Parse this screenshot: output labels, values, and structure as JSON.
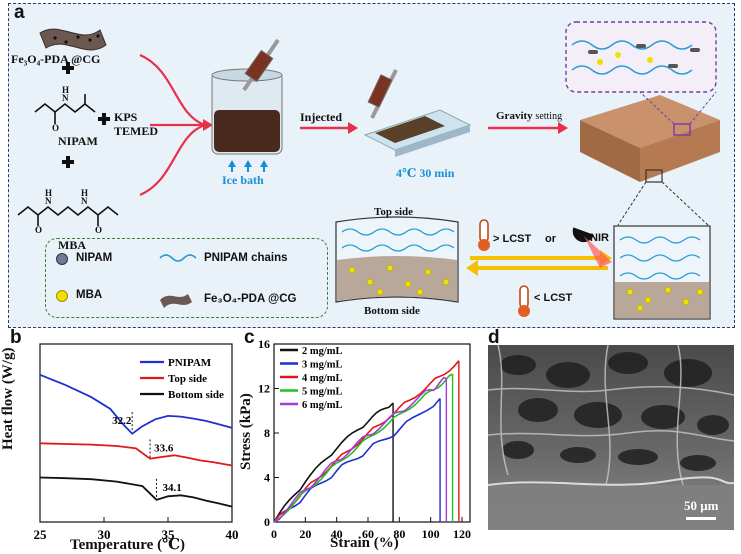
{
  "panel_a": {
    "label": "a",
    "reagent1": "Fe₃O₄-PDA @CG",
    "reagent2": "NIPAM",
    "reagent3": "MBA",
    "initiator1": "KPS",
    "initiator2": "TEMED",
    "ice_bath": "Ice bath",
    "injected": "Injected",
    "condition": "4℃  30 min",
    "gravity": "Gravity",
    "setting": "setting",
    "top_side": "Top side",
    "bottom_side": "Bottom side",
    "gt_lcst": "> LCST",
    "or": "or",
    "nir": "NIR",
    "lt_lcst": "< LCST",
    "legend": {
      "nipam": "NIPAM",
      "mba": "MBA",
      "chains": "PNIPAM chains",
      "fe": "Fe₃O₄-PDA @CG"
    },
    "colors": {
      "panel_bg": "#e9f2f8",
      "border": "#2a3a78",
      "arrow": "#e8304a",
      "chain": "#2a9bd4",
      "mba": "#f0e000"
    }
  },
  "panel_b": {
    "label": "b",
    "chart_data": {
      "type": "line",
      "xlabel": "Temperature (℃)",
      "ylabel": "Heat flow (W/g)",
      "xlim": [
        25,
        40
      ],
      "xticks": [
        "25",
        "30",
        "35",
        "40"
      ],
      "legend_position": "top-right",
      "series": [
        {
          "name": "PNIPAM",
          "color": "#1f2fd0",
          "x": [
            25,
            27,
            29,
            30.5,
            31.5,
            32.2,
            33,
            34,
            35,
            36,
            37,
            38,
            39,
            40
          ],
          "y": [
            4.5,
            4.2,
            3.85,
            3.5,
            3.05,
            2.78,
            3.0,
            3.2,
            3.3,
            3.28,
            3.22,
            3.15,
            3.05,
            2.95
          ]
        },
        {
          "name": "Top side",
          "color": "#e01818",
          "x": [
            25,
            27,
            29,
            31,
            32.5,
            33.6,
            34.5,
            35.5,
            36.5,
            37.5,
            38.5,
            40
          ],
          "y": [
            2.5,
            2.48,
            2.46,
            2.42,
            2.35,
            2.05,
            2.1,
            2.15,
            2.08,
            2.0,
            1.95,
            1.85
          ]
        },
        {
          "name": "Bottom side",
          "color": "#111111",
          "x": [
            25,
            27,
            29,
            31,
            33,
            34.1,
            35,
            36,
            37,
            38,
            39,
            40
          ],
          "y": [
            1.5,
            1.48,
            1.45,
            1.38,
            1.25,
            0.85,
            0.95,
            0.98,
            0.92,
            0.82,
            0.74,
            0.65
          ]
        }
      ],
      "annotations": [
        "32.2",
        "33.6",
        "34.1"
      ]
    }
  },
  "panel_c": {
    "label": "c",
    "chart_data": {
      "type": "line",
      "xlabel": "Strain (%)",
      "ylabel": "Stress (kPa)",
      "xlim": [
        0,
        120
      ],
      "ylim": [
        0,
        16
      ],
      "xticks": [
        "0",
        "20",
        "40",
        "60",
        "80",
        "100",
        "120"
      ],
      "yticks": [
        "0",
        "4",
        "8",
        "12",
        "16"
      ],
      "legend_position": "top-left",
      "series": [
        {
          "name": "2 mg/mL",
          "color": "#111111",
          "x": [
            0,
            20,
            40,
            60,
            76
          ],
          "y": [
            0,
            3.6,
            6.6,
            9.0,
            10.7
          ]
        },
        {
          "name": "3 mg/mL",
          "color": "#1f2fd0",
          "x": [
            0,
            20,
            40,
            60,
            80,
            106
          ],
          "y": [
            0,
            2.4,
            4.6,
            6.5,
            8.3,
            11.1
          ]
        },
        {
          "name": "4 mg/mL",
          "color": "#e01818",
          "x": [
            0,
            20,
            40,
            60,
            80,
            100,
            118
          ],
          "y": [
            0,
            3.0,
            5.6,
            8.0,
            10.3,
            12.5,
            14.5
          ]
        },
        {
          "name": "5 mg/mL",
          "color": "#22c022",
          "x": [
            0,
            20,
            40,
            60,
            80,
            100,
            114
          ],
          "y": [
            0,
            2.8,
            5.3,
            7.6,
            9.7,
            11.8,
            13.3
          ]
        },
        {
          "name": "6 mg/mL",
          "color": "#a43cd8",
          "x": [
            0,
            20,
            40,
            60,
            80,
            100,
            110
          ],
          "y": [
            0,
            2.9,
            5.5,
            7.8,
            9.9,
            11.9,
            12.9
          ]
        }
      ],
      "break_colors": [
        "#111111",
        "#1f2fd0",
        "#a43cd8",
        "#22c022",
        "#e01818",
        "#e08a10"
      ]
    }
  },
  "panel_d": {
    "label": "d",
    "scale_bar": "50 μm"
  }
}
